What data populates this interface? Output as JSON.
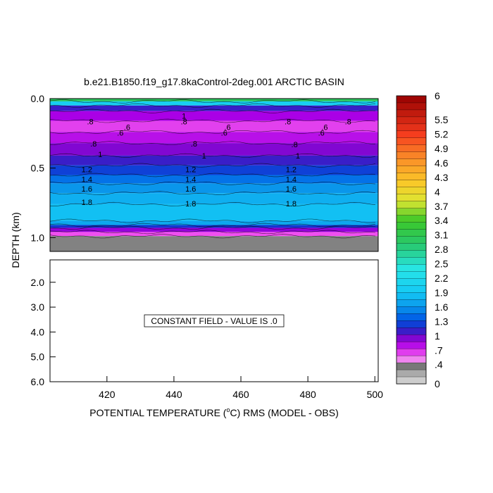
{
  "chart_data": {
    "type": "heatmap",
    "title": "b.e21.B1850.f19_g17.8kaControl-2deg.001 ARCTIC BASIN",
    "xlabel": "POTENTIAL TEMPERATURE (",
    "xlabel_unit": "o",
    "xlabel_tail": "C) RMS (MODEL - OBS)",
    "ylabel": "DEPTH (km)",
    "xlim": [
      403,
      501
    ],
    "x_ticks": [
      "420",
      "440",
      "460",
      "480",
      "500"
    ],
    "x_tick_values": [
      420,
      440,
      460,
      480,
      500
    ],
    "upper_panel": {
      "ylim": [
        0.0,
        1.1
      ],
      "y_ticks": [
        "0.0",
        "0.5",
        "1.0"
      ],
      "y_tick_values": [
        0.0,
        0.5,
        1.0
      ],
      "bands": [
        {
          "depth": [
            0.0,
            0.02
          ],
          "value": 3.0
        },
        {
          "depth": [
            0.02,
            0.05
          ],
          "value": 2.0
        },
        {
          "depth": [
            0.05,
            0.09
          ],
          "value": 1.1
        },
        {
          "depth": [
            0.09,
            0.16
          ],
          "value": 0.85
        },
        {
          "depth": [
            0.16,
            0.24
          ],
          "value": 0.65
        },
        {
          "depth": [
            0.24,
            0.32
          ],
          "value": 0.8
        },
        {
          "depth": [
            0.32,
            0.41
          ],
          "value": 0.95
        },
        {
          "depth": [
            0.41,
            0.48
          ],
          "value": 1.1
        },
        {
          "depth": [
            0.48,
            0.55
          ],
          "value": 1.25
        },
        {
          "depth": [
            0.55,
            0.61
          ],
          "value": 1.45
        },
        {
          "depth": [
            0.61,
            0.68
          ],
          "value": 1.6
        },
        {
          "depth": [
            0.68,
            0.76
          ],
          "value": 1.75
        },
        {
          "depth": [
            0.76,
            0.88
          ],
          "value": 1.85
        },
        {
          "depth": [
            0.88,
            0.91
          ],
          "value": 1.7
        },
        {
          "depth": [
            0.91,
            0.93
          ],
          "value": 1.2
        },
        {
          "depth": [
            0.93,
            0.96
          ],
          "value": 0.9
        },
        {
          "depth": [
            0.96,
            0.99
          ],
          "value": 0.6
        },
        {
          "depth": [
            0.99,
            1.1
          ],
          "value": 0.0
        }
      ],
      "contour_labels": [
        {
          "text": "1",
          "x": 443,
          "depth": 0.125
        },
        {
          "text": ".8",
          "x": 415,
          "depth": 0.165
        },
        {
          "text": ".8",
          "x": 443,
          "depth": 0.165
        },
        {
          "text": ".8",
          "x": 474,
          "depth": 0.165
        },
        {
          "text": ".8",
          "x": 492,
          "depth": 0.165
        },
        {
          "text": ".6",
          "x": 426,
          "depth": 0.205
        },
        {
          "text": ".6",
          "x": 456,
          "depth": 0.205
        },
        {
          "text": ".6",
          "x": 485,
          "depth": 0.205
        },
        {
          "text": ".6",
          "x": 424,
          "depth": 0.245
        },
        {
          "text": ".6",
          "x": 455,
          "depth": 0.245
        },
        {
          "text": ".6",
          "x": 484,
          "depth": 0.245
        },
        {
          "text": ".8",
          "x": 416,
          "depth": 0.325
        },
        {
          "text": ".8",
          "x": 446,
          "depth": 0.325
        },
        {
          "text": ".8",
          "x": 476,
          "depth": 0.33
        },
        {
          "text": "1",
          "x": 418,
          "depth": 0.4
        },
        {
          "text": "1",
          "x": 449,
          "depth": 0.41
        },
        {
          "text": "1",
          "x": 477,
          "depth": 0.41
        },
        {
          "text": "1.2",
          "x": 414,
          "depth": 0.51
        },
        {
          "text": "1.2",
          "x": 445,
          "depth": 0.51
        },
        {
          "text": "1.2",
          "x": 475,
          "depth": 0.51
        },
        {
          "text": "1.4",
          "x": 414,
          "depth": 0.58
        },
        {
          "text": "1.4",
          "x": 445,
          "depth": 0.58
        },
        {
          "text": "1.4",
          "x": 475,
          "depth": 0.58
        },
        {
          "text": "1.6",
          "x": 414,
          "depth": 0.65
        },
        {
          "text": "1.6",
          "x": 445,
          "depth": 0.65
        },
        {
          "text": "1.6",
          "x": 475,
          "depth": 0.65
        },
        {
          "text": "1.8",
          "x": 414,
          "depth": 0.745
        },
        {
          "text": "1.8",
          "x": 445,
          "depth": 0.755
        },
        {
          "text": "1.8",
          "x": 475,
          "depth": 0.755
        }
      ]
    },
    "lower_panel": {
      "ylim": [
        1.1,
        6.0
      ],
      "y_ticks": [
        "2.0",
        "3.0",
        "4.0",
        "5.0",
        "6.0"
      ],
      "y_tick_values": [
        2.0,
        3.0,
        4.0,
        5.0,
        6.0
      ],
      "annotation": "CONSTANT FIELD - VALUE IS .0"
    },
    "colorbar": {
      "labels": [
        "6",
        "5.5",
        "5.2",
        "4.9",
        "4.6",
        "4.3",
        "4",
        "3.7",
        "3.4",
        "3.1",
        "2.8",
        "2.5",
        "2.2",
        "1.9",
        "1.6",
        "1.3",
        "1",
        ".7",
        ".4",
        "0"
      ],
      "label_values": [
        6,
        5.5,
        5.2,
        4.9,
        4.6,
        4.3,
        4,
        3.7,
        3.4,
        3.1,
        2.8,
        2.5,
        2.2,
        1.9,
        1.6,
        1.3,
        1,
        0.7,
        0.4,
        0
      ],
      "n_levels": 41,
      "gray_levels": 3
    }
  }
}
